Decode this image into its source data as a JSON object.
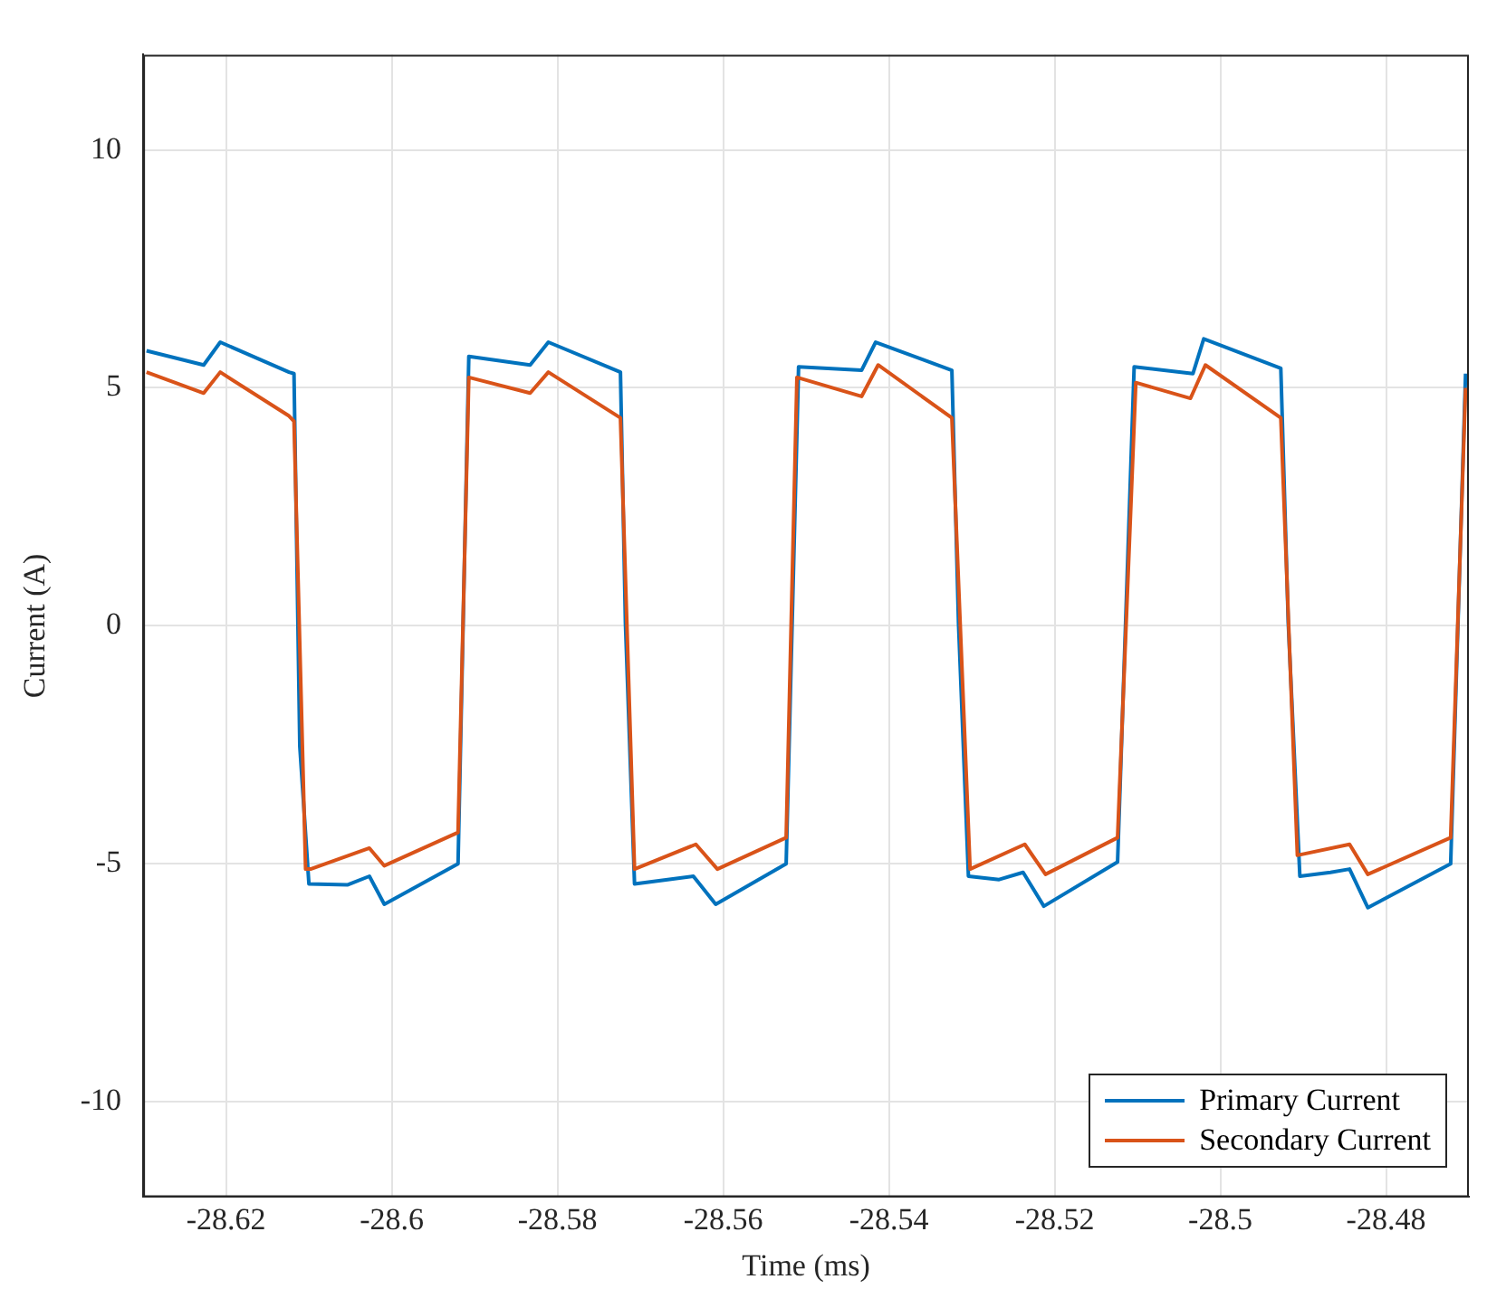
{
  "chart_data": {
    "type": "line",
    "xlabel": "Time (ms)",
    "ylabel": "Current (A)",
    "xlim": [
      -28.63,
      -28.47
    ],
    "xticks": [
      -28.62,
      -28.6,
      -28.58,
      -28.56,
      -28.54,
      -28.52,
      -28.5,
      -28.48
    ],
    "ylim": [
      -12,
      12
    ],
    "yticks": [
      -10,
      -5,
      0,
      5,
      10
    ],
    "grid": true,
    "legend": "bottom right",
    "marker": "none",
    "line_style": "solid",
    "series": [
      {
        "name": "Primary Current",
        "color": "#0072bd",
        "x": [
          -28.6296,
          -28.6227,
          -28.6207,
          -28.6124,
          -28.6118,
          -28.6111,
          -28.61,
          -28.6053,
          -28.6027,
          -28.6009,
          -28.592,
          -28.5907,
          -28.5833,
          -28.5811,
          -28.5724,
          -28.5718,
          -28.5707,
          -28.5667,
          -28.5636,
          -28.5609,
          -28.5524,
          -28.5509,
          -28.5433,
          -28.5416,
          -28.5324,
          -28.5316,
          -28.5304,
          -28.5267,
          -28.5238,
          -28.5213,
          -28.5124,
          -28.5104,
          -28.5033,
          -28.502,
          -28.4927,
          -28.4918,
          -28.4904,
          -28.4867,
          -28.4844,
          -28.4822,
          -28.4722,
          -28.4704
        ],
        "values": [
          5.78,
          5.48,
          5.96,
          5.33,
          5.3,
          -2.53,
          -5.42,
          -5.44,
          -5.26,
          -5.85,
          -5.0,
          5.66,
          5.48,
          5.96,
          5.33,
          0.06,
          -5.42,
          -5.33,
          -5.26,
          -5.85,
          -5.0,
          5.44,
          5.37,
          5.96,
          5.37,
          0.06,
          -5.26,
          -5.33,
          -5.18,
          -5.89,
          -4.96,
          5.44,
          5.3,
          6.03,
          5.41,
          0.06,
          -5.26,
          -5.18,
          -5.11,
          -5.92,
          -5.0,
          5.3
        ]
      },
      {
        "name": "Secondary Current",
        "color": "#d95319",
        "x": [
          -28.6296,
          -28.6227,
          -28.6207,
          -28.6124,
          -28.6118,
          -28.6104,
          -28.6098,
          -28.6027,
          -28.6009,
          -28.592,
          -28.5907,
          -28.5833,
          -28.5811,
          -28.5724,
          -28.5707,
          -28.5633,
          -28.5607,
          -28.5524,
          -28.5511,
          -28.5433,
          -28.5413,
          -28.5324,
          -28.5302,
          -28.5236,
          -28.5211,
          -28.5124,
          -28.5102,
          -28.5036,
          -28.5018,
          -28.4927,
          -28.4907,
          -28.4844,
          -28.4822,
          -28.4722,
          -28.4704
        ],
        "values": [
          5.33,
          4.89,
          5.33,
          4.41,
          4.3,
          -5.11,
          -5.11,
          -4.67,
          -5.04,
          -4.34,
          5.22,
          4.89,
          5.33,
          4.37,
          -5.11,
          -4.59,
          -5.11,
          -4.45,
          5.22,
          4.82,
          5.48,
          4.37,
          -5.11,
          -4.59,
          -5.22,
          -4.45,
          5.11,
          4.78,
          5.48,
          4.37,
          -4.82,
          -4.59,
          -5.22,
          -4.45,
          5.0
        ]
      }
    ]
  }
}
